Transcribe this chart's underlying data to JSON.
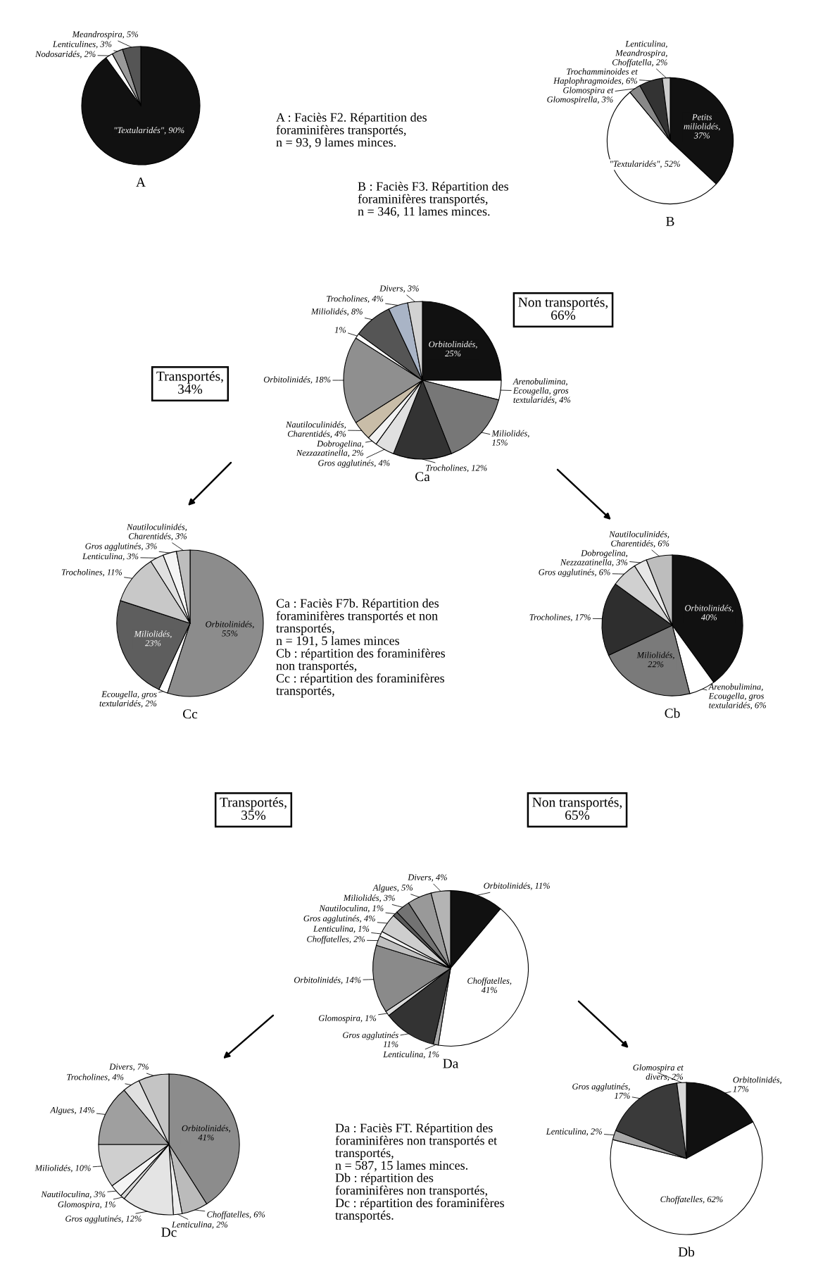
{
  "chart_data": [
    {
      "type": "pie",
      "title": "A",
      "categories": [
        "\"Textularidés\", 90%",
        "Nodosaridés, 2%",
        "Lenticulines, 3%",
        "Meandrospira, 5%"
      ],
      "values": [
        90,
        2,
        3,
        5
      ],
      "colors": [
        "#111111",
        "#ffffff",
        "#999999",
        "#555555"
      ],
      "annotations": [
        "A : Faciès F2. Répartition des\nforaminifères transportés,\nn = 93, 9 lames minces."
      ]
    },
    {
      "type": "pie",
      "title": "B",
      "categories": [
        "Petits\nmiliolidés,\n37%",
        "\"Textularidés\", 52%",
        "Glomospira et\nGlomospirella, 3%",
        "Trochamminoides et\nHaplophragmoides, 6%",
        "Lenticulina,\nMeandrospira,\nChoffatella, 2%"
      ],
      "values": [
        37,
        52,
        3,
        6,
        2
      ],
      "colors": [
        "#111111",
        "#ffffff",
        "#888888",
        "#333333",
        "#cccccc"
      ],
      "annotations": [
        "B : Faciès F3. Répartition des\nforaminifères transportés,\nn = 346, 11 lames minces."
      ]
    },
    {
      "type": "pie",
      "title": "Ca",
      "categories": [
        "Orbitolinidés,\n25%",
        "Arenobulimina,\nEcougella, gros\ntextularidés, 4%",
        "Miliolidés,\n15%",
        "Trocholines, 12%",
        "Gros agglutinés, 4%",
        "Dobrogelina,\nNezzazatinella, 2%",
        "Nautiloculinidés,\nCharentidés, 4%",
        "Orbitolinidés, 18%",
        "1%",
        "Miliolidés, 8%",
        "Trocholines, 4%",
        "Divers, 3%"
      ],
      "values": [
        25,
        4,
        15,
        12,
        4,
        2,
        4,
        18,
        1,
        8,
        4,
        3
      ],
      "colors": [
        "#111111",
        "#ffffff",
        "#777777",
        "#333333",
        "#e0e0e0",
        "#f2f2f2",
        "#c9bda8",
        "#8f8f8f",
        "#fbfbfb",
        "#555555",
        "#a9b4c6",
        "#d2d2d2"
      ],
      "annotations": [
        "Transportés,\n34%",
        "Non transportés,\n66%",
        "Ca : Faciès F7b. Répartition des\nforaminifères transportés et non\ntransportés,\nn = 191, 5 lames minces\nCb : répartition des foraminifères\nnon transportés,\nCc : répartition des foraminifères\ntransportés,"
      ]
    },
    {
      "type": "pie",
      "title": "Cc",
      "categories": [
        "Orbitolinidés,\n55%",
        "Ecougella, gros\ntextularidés, 2%",
        "Miliolidés,\n23%",
        "Trocholines, 11%",
        "Lenticulina, 3%",
        "Gros agglutinés, 3%",
        "Nautiloculinidés,\nCharentidés, 3%"
      ],
      "values": [
        55,
        2,
        23,
        11,
        3,
        3,
        3
      ],
      "colors": [
        "#8c8c8c",
        "#ffffff",
        "#5e5e5e",
        "#c8c8c8",
        "#e0e0e0",
        "#f5f5f5",
        "#bdbdbd"
      ]
    },
    {
      "type": "pie",
      "title": "Cb",
      "categories": [
        "Orbitolinidés,\n40%",
        "Arenobulimina,\nEcougella, gros\ntextularidés, 6%",
        "Miliolidés,\n22%",
        "Trocholines, 17%",
        "Gros agglutinés, 6%",
        "Dobrogelina,\nNezzazatinella, 3%",
        "Nautiloculinidés,\nCharentidés, 6%"
      ],
      "values": [
        40,
        6,
        22,
        17,
        6,
        3,
        6
      ],
      "colors": [
        "#111111",
        "#ffffff",
        "#7a7a7a",
        "#2e2e2e",
        "#d0d0d0",
        "#e8e8e8",
        "#bdbdbd"
      ]
    },
    {
      "type": "pie",
      "title": "Da",
      "categories": [
        "Orbitolinidés, 11%",
        "Choffatelles,\n41%",
        "Lenticulina, 1%",
        "Gros agglutinés\n11%",
        "Glomospira, 1%",
        "Orbitolinidés, 14%",
        "Choffatelles, 2%",
        "Lenticulina, 1%",
        "Gros agglutinés, 4%",
        "Nautiloculina, 1%",
        "Miliolidés, 3%",
        "Algues, 5%",
        "Divers, 4%"
      ],
      "values": [
        11,
        41,
        1,
        11,
        1,
        14,
        2,
        1,
        4,
        1,
        3,
        5,
        4
      ],
      "colors": [
        "#111111",
        "#ffffff",
        "#a8a8a8",
        "#333333",
        "#dcdcdc",
        "#8a8a8a",
        "#c0c0c0",
        "#f0f0f0",
        "#cecece",
        "#5a5a5a",
        "#737373",
        "#999999",
        "#b4b4b4"
      ],
      "annotations": [
        "Transportés,\n35%",
        "Non transportés,\n65%",
        "Da : Faciès FT. Répartition des\nforaminifères non transportés et\ntransportés,\nn = 587, 15 lames minces.\nDb : répartition des\nforaminifères non transportés,\nDc : répartition des foraminifères\ntransportés."
      ]
    },
    {
      "type": "pie",
      "title": "Dc",
      "categories": [
        "Orbitolinidés,\n41%",
        "Choffatelles, 6%",
        "Lenticulina, 2%",
        "Gros agglutinés, 12%",
        "Glomospira, 1%",
        "Nautiloculina, 3%",
        "Miliolidés, 10%",
        "Algues, 14%",
        "Trocholines, 4%",
        "Divers, 7%"
      ],
      "values": [
        41,
        6,
        2,
        12,
        1,
        3,
        10,
        14,
        4,
        7
      ],
      "colors": [
        "#8c8c8c",
        "#bbbbbb",
        "#eeeeee",
        "#e4e4e4",
        "#d8d8d8",
        "#f4f4f4",
        "#cfcfcf",
        "#9f9f9f",
        "#e0e0e0",
        "#c4c4c4"
      ]
    },
    {
      "type": "pie",
      "title": "Db",
      "categories": [
        "Orbitolinidés,\n17%",
        "Choffatelles, 62%",
        "Lenticulina, 2%",
        "Gros agglutinés,\n17%",
        "Glomospira et\ndivers, 2%"
      ],
      "values": [
        17,
        62,
        2,
        17,
        2
      ],
      "colors": [
        "#111111",
        "#ffffff",
        "#aaaaaa",
        "#3a3a3a",
        "#d8d8d8"
      ]
    }
  ]
}
